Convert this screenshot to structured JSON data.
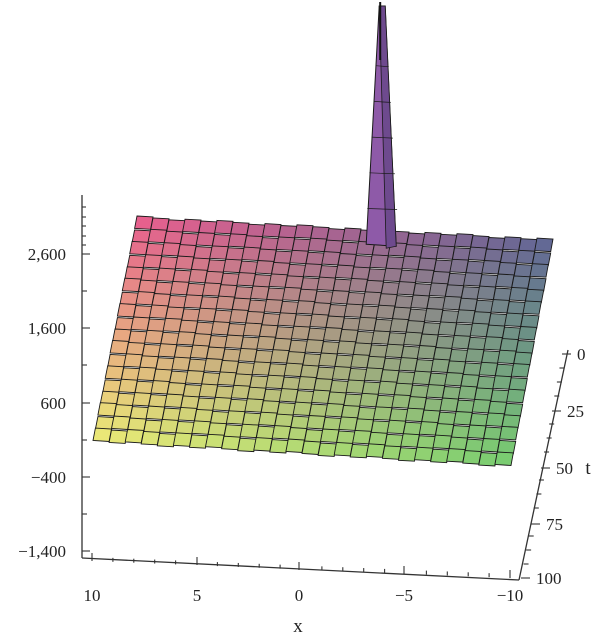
{
  "chart_data": {
    "type": "surface3d",
    "xlabel": "x",
    "ylabel": "t",
    "zlabel": "",
    "x_ticks": [
      "10",
      "5",
      "0",
      "−5",
      "−10"
    ],
    "t_ticks": [
      "0",
      "25",
      "50",
      "75",
      "100"
    ],
    "z_ticks": [
      "2,600",
      "1,600",
      "600",
      "−400",
      "−1,400"
    ],
    "x_range": [
      10,
      -10
    ],
    "t_range": [
      0,
      100
    ],
    "z_range": [
      -1400,
      2600
    ],
    "surface_shape": "approximately planar sheet rising from x = 10 toward x = -10 with a single tall narrow spike",
    "spike": {
      "x": -1.5,
      "t": 0,
      "height": "exceeds top of view"
    },
    "colormap": "x-t gradient: pink (x=10,t=0), yellow (x=10,t=100), green (x=-10,t=100), slate blue (x=-10,t=0)"
  }
}
